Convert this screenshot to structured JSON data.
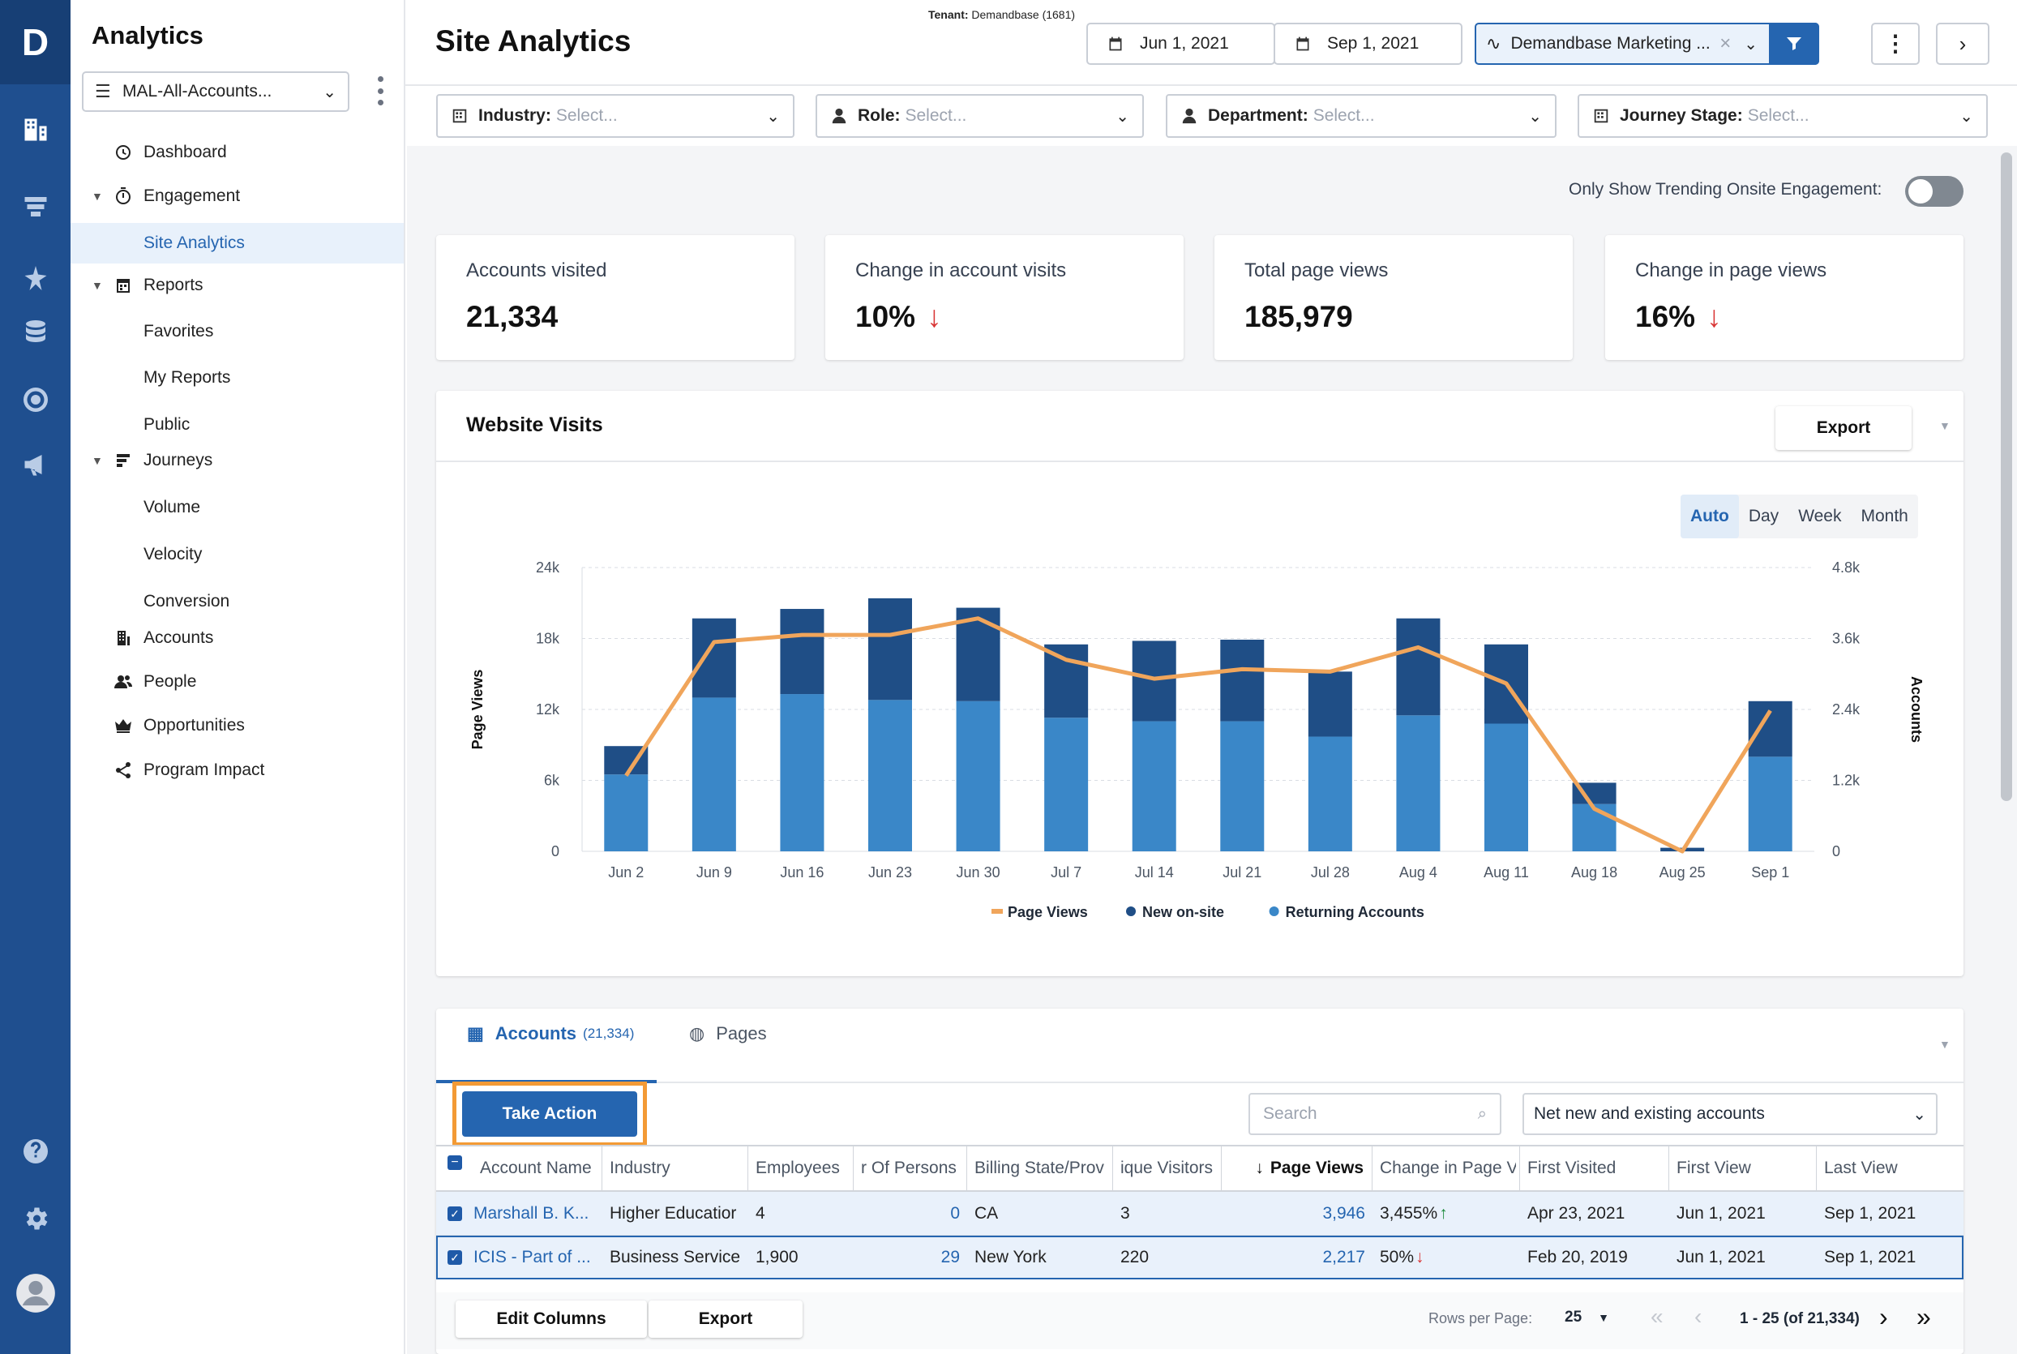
{
  "rail": {
    "logo": "D",
    "icons": [
      "accounts-report-icon",
      "funnel-icon",
      "sparkle-icon",
      "database-icon",
      "target-icon",
      "megaphone-icon",
      "help-icon",
      "settings-icon",
      "user-avatar-icon"
    ]
  },
  "nav": {
    "title": "Analytics",
    "account_list": "MAL-All-Accounts...",
    "items": [
      {
        "label": "Dashboard"
      },
      {
        "label": "Engagement"
      },
      {
        "label": "Site Analytics"
      },
      {
        "label": "Reports"
      },
      {
        "label": "Favorites"
      },
      {
        "label": "My Reports"
      },
      {
        "label": "Public"
      },
      {
        "label": "Journeys"
      },
      {
        "label": "Volume"
      },
      {
        "label": "Velocity"
      },
      {
        "label": "Conversion"
      },
      {
        "label": "Accounts"
      },
      {
        "label": "People"
      },
      {
        "label": "Opportunities"
      },
      {
        "label": "Program Impact"
      }
    ]
  },
  "header": {
    "title": "Site Analytics",
    "tenant_label": "Tenant:",
    "tenant_value": "Demandbase (1681)",
    "start_date": "Jun 1, 2021",
    "end_date": "Sep 1, 2021",
    "campaign": "Demandbase Marketing ...",
    "clear": "×"
  },
  "filters": {
    "industry": {
      "label": "Industry:",
      "placeholder": "Select..."
    },
    "role": {
      "label": "Role:",
      "placeholder": "Select..."
    },
    "department": {
      "label": "Department:",
      "placeholder": "Select..."
    },
    "journey": {
      "label": "Journey Stage:",
      "placeholder": "Select..."
    }
  },
  "trending_label": "Only Show Trending Onsite Engagement:",
  "kpis": [
    {
      "label": "Accounts visited",
      "value": "21,334",
      "trend": ""
    },
    {
      "label": "Change in account visits",
      "value": "10%",
      "trend": "↓"
    },
    {
      "label": "Total page views",
      "value": "185,979",
      "trend": ""
    },
    {
      "label": "Change in page views",
      "value": "16%",
      "trend": "↓"
    }
  ],
  "visits_card": {
    "title": "Website Visits",
    "export": "Export",
    "granularity": [
      "Auto",
      "Day",
      "Week",
      "Month"
    ],
    "selected": "Auto"
  },
  "chart_data": {
    "type": "bar",
    "categories": [
      "Jun 2",
      "Jun 9",
      "Jun 16",
      "Jun 23",
      "Jun 30",
      "Jul 7",
      "Jul 14",
      "Jul 21",
      "Jul 28",
      "Aug 4",
      "Aug 11",
      "Aug 18",
      "Aug 25",
      "Sep 1"
    ],
    "ylabel": "Page Views",
    "y2label": "Accounts",
    "ylim": [
      0,
      24000
    ],
    "y2lim": [
      0,
      4800
    ],
    "yticks": [
      "0",
      "6k",
      "12k",
      "18k",
      "24k"
    ],
    "y2ticks": [
      "0",
      "1.2k",
      "2.4k",
      "3.6k",
      "4.8k"
    ],
    "stacked": true,
    "series": [
      {
        "name": "Returning Accounts",
        "type": "bar",
        "axis": "left",
        "color": "#3a87c8",
        "values": [
          6500,
          13000,
          13300,
          12800,
          12700,
          11300,
          11000,
          11000,
          9700,
          11500,
          10800,
          4000,
          0,
          8000
        ]
      },
      {
        "name": "New on-site",
        "type": "bar",
        "axis": "left",
        "color": "#1f4e86",
        "values": [
          2400,
          6700,
          7200,
          8600,
          7900,
          6200,
          6800,
          6900,
          5500,
          8200,
          6700,
          1800,
          300,
          4700
        ]
      },
      {
        "name": "Page Views",
        "type": "line",
        "axis": "right",
        "color": "#f0a55b",
        "values": [
          1280,
          3540,
          3660,
          3660,
          3940,
          3240,
          2920,
          3080,
          3040,
          3450,
          2840,
          720,
          0,
          2380
        ]
      }
    ],
    "legend": [
      "Page Views",
      "New on-site",
      "Returning Accounts"
    ],
    "legend_position": "bottom"
  },
  "table_section": {
    "tab_accounts": "Accounts",
    "tab_accounts_count": "(21,334)",
    "tab_pages": "Pages",
    "take_action": "Take Action",
    "search_placeholder": "Search",
    "scope": "Net new and existing accounts",
    "columns": [
      "Account Name",
      "Industry",
      "Employees",
      "r Of Persons",
      "Billing State/Prov",
      "ique Visitors",
      "Page Views",
      "Change in Page V",
      "First Visited",
      "First View",
      "Last View"
    ],
    "rows": [
      {
        "account": "Marshall B. K...",
        "industry": "Higher Educatior",
        "employees": "4",
        "persons": "0",
        "state": "CA",
        "visitors": "3",
        "page_views": "3,946",
        "change": "3,455%",
        "change_dir": "↑",
        "first_visited": "Apr 23, 2021",
        "first_view": "Jun 1, 2021",
        "last_view": "Sep 1, 2021"
      },
      {
        "account": "ICIS - Part of ...",
        "industry": "Business Service",
        "employees": "1,900",
        "persons": "29",
        "state": "New York",
        "visitors": "220",
        "page_views": "2,217",
        "change": "50%",
        "change_dir": "↓",
        "first_visited": "Feb 20, 2019",
        "first_view": "Jun 1, 2021",
        "last_view": "Sep 1, 2021"
      }
    ],
    "edit_columns": "Edit Columns",
    "export": "Export",
    "rows_per_page_label": "Rows per Page:",
    "rows_per_page": "25",
    "pagination": "1 - 25 (of 21,334)"
  }
}
